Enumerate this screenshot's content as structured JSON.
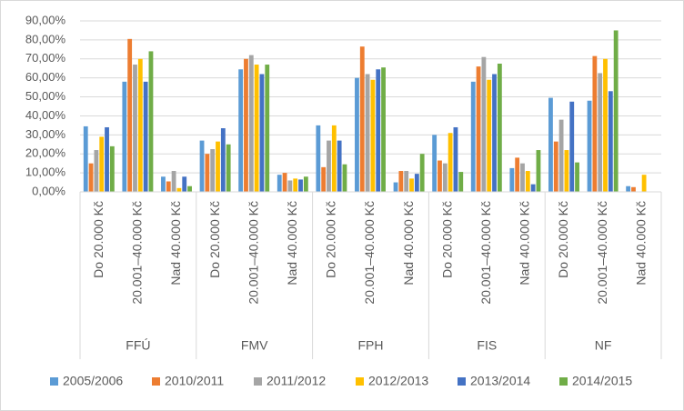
{
  "chart_data": {
    "type": "bar",
    "groups": [
      "FFÚ",
      "FMV",
      "FPH",
      "FIS",
      "NF"
    ],
    "categories": [
      "Do 20.000 Kč",
      "20.001–40.000 Kč",
      "Nad 40.000 Kč",
      "Do 20.000 Kč",
      "20.001–40.000 Kč",
      "Nad 40.000 Kč",
      "Do 20.000 Kč",
      "20.001–40.000 Kč",
      "Nad 40.000 Kč",
      "Do 20.000 Kč",
      "20.001–40.000 Kč",
      "Nad 40.000 Kč",
      "Do 20.000 Kč",
      "20.001–40.000 Kč",
      "Nad 40.000 Kč"
    ],
    "series": [
      {
        "name": "2005/2006",
        "color": "#5b9bd5",
        "values": [
          34.5,
          58,
          8,
          27,
          64.5,
          9,
          35,
          60,
          5,
          30,
          58,
          12.5,
          49.5,
          48,
          3
        ]
      },
      {
        "name": "2010/2011",
        "color": "#ed7d31",
        "values": [
          15,
          80.5,
          5.5,
          20,
          70,
          10,
          13,
          76.5,
          11,
          16.5,
          66,
          18,
          26.5,
          71.5,
          2.5
        ]
      },
      {
        "name": "2011/2012",
        "color": "#a5a5a5",
        "values": [
          22,
          67,
          11,
          22.5,
          72,
          6,
          27,
          62,
          11,
          15,
          71,
          15,
          38,
          62.5,
          null
        ]
      },
      {
        "name": "2012/2013",
        "color": "#ffc000",
        "values": [
          29,
          70,
          2,
          26.5,
          67,
          7,
          35,
          59,
          7,
          31,
          59,
          11,
          22,
          70,
          9
        ]
      },
      {
        "name": "2013/2014",
        "color": "#4472c4",
        "values": [
          34,
          58,
          8,
          33.5,
          62,
          6.5,
          27,
          64.5,
          9.5,
          34,
          62,
          4,
          47.5,
          53,
          null
        ]
      },
      {
        "name": "2014/2015",
        "color": "#70ad47",
        "values": [
          24,
          74,
          3,
          25,
          67,
          8,
          14.5,
          65.5,
          20,
          10.5,
          67.5,
          22,
          15.5,
          85,
          null
        ]
      }
    ],
    "ylim": [
      0,
      90
    ],
    "yticks": [
      {
        "value": 0,
        "label": "0,00%"
      },
      {
        "value": 10,
        "label": "10,00%"
      },
      {
        "value": 20,
        "label": "20,00%"
      },
      {
        "value": 30,
        "label": "30,00%"
      },
      {
        "value": 40,
        "label": "40,00%"
      },
      {
        "value": 50,
        "label": "50,00%"
      },
      {
        "value": 60,
        "label": "60,00%"
      },
      {
        "value": 70,
        "label": "70,00%"
      },
      {
        "value": 80,
        "label": "80,00%"
      },
      {
        "value": 90,
        "label": "90,00%"
      }
    ],
    "grid": true
  }
}
